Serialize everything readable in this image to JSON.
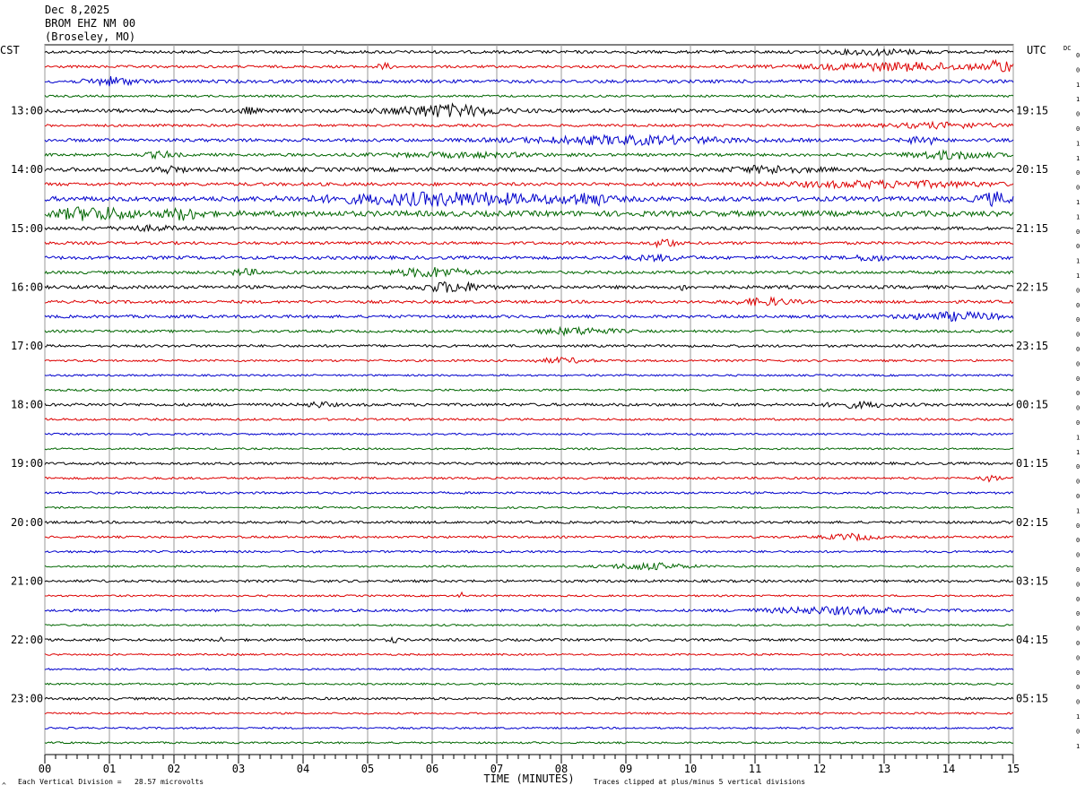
{
  "header": {
    "date": "Dec 8,2025",
    "station": "BROM EHZ NM 00",
    "location": "(Broseley, MO)"
  },
  "left_label": "CST",
  "right_label": "UTC",
  "dc_label": "DC",
  "footer": {
    "scale": "Each Vertical Division =   28.57 microvolts",
    "clip": "Traces clipped at plus/minus 5 vertical divisions",
    "corner_mark": "^"
  },
  "chart_data": {
    "type": "helicorder",
    "xlabel": "TIME (MINUTES)",
    "x_ticks": [
      "00",
      "01",
      "02",
      "03",
      "04",
      "05",
      "06",
      "07",
      "08",
      "09",
      "10",
      "11",
      "12",
      "13",
      "14",
      "15"
    ],
    "minutes_per_line": 15,
    "line_count": 48,
    "trace_colors": [
      "#000000",
      "#dd0000",
      "#0000cc",
      "#006600"
    ],
    "left_hour_labels": [
      {
        "line": 4,
        "text": "13:00"
      },
      {
        "line": 8,
        "text": "14:00"
      },
      {
        "line": 12,
        "text": "15:00"
      },
      {
        "line": 16,
        "text": "16:00"
      },
      {
        "line": 20,
        "text": "17:00"
      },
      {
        "line": 24,
        "text": "18:00"
      },
      {
        "line": 28,
        "text": "19:00"
      },
      {
        "line": 32,
        "text": "20:00"
      },
      {
        "line": 36,
        "text": "21:00"
      },
      {
        "line": 40,
        "text": "22:00"
      },
      {
        "line": 44,
        "text": "23:00"
      }
    ],
    "right_hour_labels": [
      {
        "line": 4,
        "text": "19:15"
      },
      {
        "line": 8,
        "text": "20:15"
      },
      {
        "line": 12,
        "text": "21:15"
      },
      {
        "line": 16,
        "text": "22:15"
      },
      {
        "line": 20,
        "text": "23:15"
      },
      {
        "line": 24,
        "text": "00:15"
      },
      {
        "line": 28,
        "text": "01:15"
      },
      {
        "line": 32,
        "text": "02:15"
      },
      {
        "line": 36,
        "text": "03:15"
      },
      {
        "line": 40,
        "text": "04:15"
      },
      {
        "line": 44,
        "text": "05:15"
      }
    ],
    "dc_offsets": [
      0,
      0,
      1,
      1,
      0,
      0,
      1,
      1,
      0,
      0,
      1,
      1,
      0,
      0,
      1,
      1,
      0,
      0,
      0,
      0,
      0,
      0,
      0,
      0,
      0,
      0,
      1,
      1,
      0,
      0,
      0,
      1,
      0,
      0,
      0,
      0,
      0,
      0,
      0,
      0,
      0,
      0,
      0,
      0,
      0,
      1,
      0,
      1
    ],
    "base_noise": [
      1.6,
      1.4,
      1.8,
      1.2,
      2.0,
      1.4,
      1.8,
      1.6,
      2.2,
      1.8,
      2.6,
      3.0,
      1.8,
      1.6,
      1.8,
      1.6,
      1.8,
      1.6,
      1.6,
      1.4,
      1.4,
      1.2,
      1.0,
      1.2,
      1.6,
      1.2,
      1.0,
      1.0,
      1.4,
      1.2,
      1.2,
      1.0,
      1.4,
      1.2,
      1.2,
      1.0,
      1.4,
      1.0,
      1.4,
      1.0,
      1.4,
      1.0,
      1.0,
      1.0,
      1.4,
      1.0,
      1.0,
      1.0
    ],
    "events": [
      {
        "line": 0,
        "minute": 12.1,
        "duration": 1.6,
        "amplitude": 2.5
      },
      {
        "line": 1,
        "minute": 5.1,
        "duration": 0.3,
        "amplitude": 3
      },
      {
        "line": 1,
        "minute": 11.5,
        "duration": 3.5,
        "amplitude": 4
      },
      {
        "line": 1,
        "minute": 14.6,
        "duration": 0.4,
        "amplitude": 7
      },
      {
        "line": 2,
        "minute": 0.6,
        "duration": 0.9,
        "amplitude": 4
      },
      {
        "line": 4,
        "minute": 5.2,
        "duration": 2.0,
        "amplitude": 6
      },
      {
        "line": 4,
        "minute": 3.0,
        "duration": 0.3,
        "amplitude": 3
      },
      {
        "line": 5,
        "minute": 12.8,
        "duration": 2.2,
        "amplitude": 2.5
      },
      {
        "line": 6,
        "minute": 7.0,
        "duration": 4.0,
        "amplitude": 4
      },
      {
        "line": 6,
        "minute": 13.3,
        "duration": 0.6,
        "amplitude": 4
      },
      {
        "line": 7,
        "minute": 1.5,
        "duration": 0.6,
        "amplitude": 3
      },
      {
        "line": 7,
        "minute": 5.0,
        "duration": 3.0,
        "amplitude": 2
      },
      {
        "line": 7,
        "minute": 13.2,
        "duration": 1.6,
        "amplitude": 4
      },
      {
        "line": 8,
        "minute": 1.6,
        "duration": 0.6,
        "amplitude": 3
      },
      {
        "line": 8,
        "minute": 10.5,
        "duration": 1.5,
        "amplitude": 3
      },
      {
        "line": 9,
        "minute": 11.0,
        "duration": 4.0,
        "amplitude": 3
      },
      {
        "line": 10,
        "minute": 4.0,
        "duration": 4.5,
        "amplitude": 6
      },
      {
        "line": 10,
        "minute": 8.1,
        "duration": 0.6,
        "amplitude": 7
      },
      {
        "line": 10,
        "minute": 14.4,
        "duration": 0.6,
        "amplitude": 6
      },
      {
        "line": 11,
        "minute": 0.0,
        "duration": 1.5,
        "amplitude": 6
      },
      {
        "line": 11,
        "minute": 1.8,
        "duration": 0.7,
        "amplitude": 5
      },
      {
        "line": 12,
        "minute": 1.0,
        "duration": 1.2,
        "amplitude": 2
      },
      {
        "line": 13,
        "minute": 9.4,
        "duration": 0.4,
        "amplitude": 5
      },
      {
        "line": 14,
        "minute": 9.0,
        "duration": 1.0,
        "amplitude": 2.5
      },
      {
        "line": 14,
        "minute": 12.5,
        "duration": 0.6,
        "amplitude": 3
      },
      {
        "line": 15,
        "minute": 2.8,
        "duration": 0.6,
        "amplitude": 3
      },
      {
        "line": 15,
        "minute": 5.3,
        "duration": 1.4,
        "amplitude": 5
      },
      {
        "line": 16,
        "minute": 5.7,
        "duration": 1.2,
        "amplitude": 5
      },
      {
        "line": 16,
        "minute": 9.8,
        "duration": 0.2,
        "amplitude": 3
      },
      {
        "line": 17,
        "minute": 10.6,
        "duration": 1.1,
        "amplitude": 3.5
      },
      {
        "line": 18,
        "minute": 13.2,
        "duration": 1.8,
        "amplitude": 4
      },
      {
        "line": 19,
        "minute": 7.5,
        "duration": 1.5,
        "amplitude": 3.5
      },
      {
        "line": 21,
        "minute": 7.5,
        "duration": 1.0,
        "amplitude": 2.5
      },
      {
        "line": 24,
        "minute": 4.0,
        "duration": 0.5,
        "amplitude": 2.5
      },
      {
        "line": 24,
        "minute": 12.0,
        "duration": 1.2,
        "amplitude": 2.5
      },
      {
        "line": 29,
        "minute": 14.5,
        "duration": 0.3,
        "amplitude": 4
      },
      {
        "line": 33,
        "minute": 12.0,
        "duration": 1.0,
        "amplitude": 3
      },
      {
        "line": 35,
        "minute": 8.6,
        "duration": 1.5,
        "amplitude": 3.5
      },
      {
        "line": 37,
        "minute": 6.4,
        "duration": 0.1,
        "amplitude": 3
      },
      {
        "line": 38,
        "minute": 10.9,
        "duration": 2.8,
        "amplitude": 3.5
      },
      {
        "line": 40,
        "minute": 2.65,
        "duration": 0.1,
        "amplitude": 5
      },
      {
        "line": 40,
        "minute": 5.3,
        "duration": 0.2,
        "amplitude": 2.5
      }
    ]
  }
}
